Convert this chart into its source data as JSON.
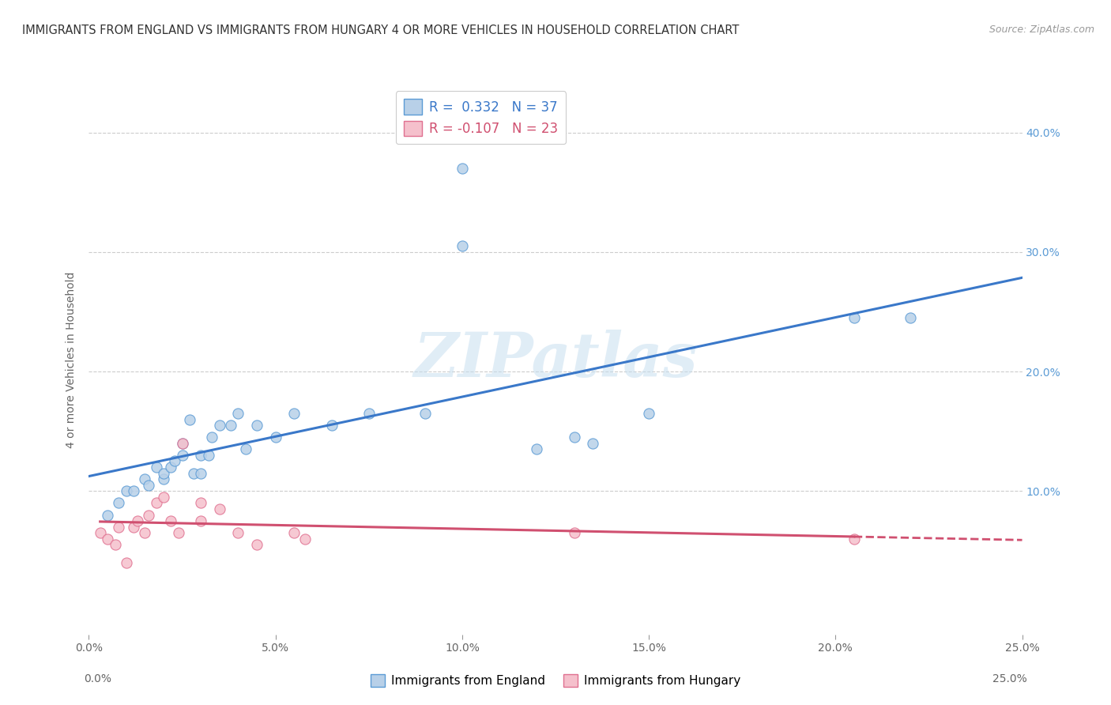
{
  "title": "IMMIGRANTS FROM ENGLAND VS IMMIGRANTS FROM HUNGARY 4 OR MORE VEHICLES IN HOUSEHOLD CORRELATION CHART",
  "source": "Source: ZipAtlas.com",
  "ylabel": "4 or more Vehicles in Household",
  "xlim": [
    0.0,
    0.25
  ],
  "ylim": [
    -0.02,
    0.44
  ],
  "xtick_vals": [
    0.0,
    0.05,
    0.1,
    0.15,
    0.2,
    0.25
  ],
  "xtick_labels": [
    "0.0%",
    "5.0%",
    "10.0%",
    "15.0%",
    "20.0%",
    "25.0%"
  ],
  "ytick_vals": [
    0.1,
    0.2,
    0.3,
    0.4
  ],
  "ytick_labels": [
    "10.0%",
    "20.0%",
    "30.0%",
    "40.0%"
  ],
  "background_color": "#ffffff",
  "grid_color": "#cccccc",
  "watermark_text": "ZIPatlas",
  "england_color": "#b8d0e8",
  "england_edge_color": "#5b9bd5",
  "england_line_color": "#3a78c9",
  "england_x": [
    0.005,
    0.008,
    0.01,
    0.012,
    0.015,
    0.016,
    0.018,
    0.02,
    0.02,
    0.022,
    0.023,
    0.025,
    0.025,
    0.027,
    0.028,
    0.03,
    0.03,
    0.032,
    0.033,
    0.035,
    0.038,
    0.04,
    0.042,
    0.045,
    0.05,
    0.055,
    0.065,
    0.075,
    0.09,
    0.1,
    0.1,
    0.12,
    0.13,
    0.135,
    0.15,
    0.205,
    0.22
  ],
  "england_y": [
    0.08,
    0.09,
    0.1,
    0.1,
    0.11,
    0.105,
    0.12,
    0.11,
    0.115,
    0.12,
    0.125,
    0.13,
    0.14,
    0.16,
    0.115,
    0.115,
    0.13,
    0.13,
    0.145,
    0.155,
    0.155,
    0.165,
    0.135,
    0.155,
    0.145,
    0.165,
    0.155,
    0.165,
    0.165,
    0.305,
    0.37,
    0.135,
    0.145,
    0.14,
    0.165,
    0.245,
    0.245
  ],
  "hungary_color": "#f5c0cc",
  "hungary_edge_color": "#e07090",
  "hungary_line_color": "#d05070",
  "hungary_x": [
    0.003,
    0.005,
    0.007,
    0.008,
    0.01,
    0.012,
    0.013,
    0.015,
    0.016,
    0.018,
    0.02,
    0.022,
    0.024,
    0.025,
    0.03,
    0.03,
    0.035,
    0.04,
    0.045,
    0.055,
    0.058,
    0.13,
    0.205
  ],
  "hungary_y": [
    0.065,
    0.06,
    0.055,
    0.07,
    0.04,
    0.07,
    0.075,
    0.065,
    0.08,
    0.09,
    0.095,
    0.075,
    0.065,
    0.14,
    0.09,
    0.075,
    0.085,
    0.065,
    0.055,
    0.065,
    0.06,
    0.065,
    0.06
  ],
  "legend_r1": "R =  0.332",
  "legend_n1": "N = 37",
  "legend_r2": "R = -0.107",
  "legend_n2": "N = 23",
  "legend_england": "Immigrants from England",
  "legend_hungary": "Immigrants from Hungary"
}
